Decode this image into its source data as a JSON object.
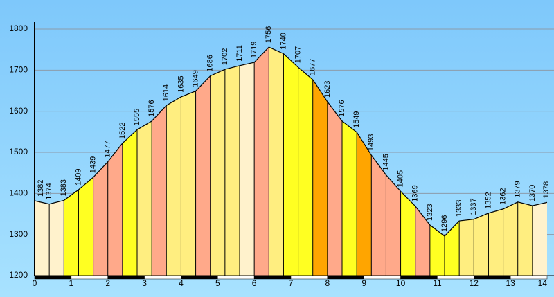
{
  "chart_data": {
    "type": "area",
    "title": "",
    "xlabel": "",
    "ylabel": "",
    "x": [
      0,
      0.4,
      0.8,
      1.2,
      1.6,
      2.0,
      2.4,
      2.8,
      3.2,
      3.6,
      4.0,
      4.4,
      4.8,
      5.2,
      5.6,
      6.0,
      6.4,
      6.8,
      7.2,
      7.6,
      8.0,
      8.4,
      8.8,
      9.2,
      9.6,
      10.0,
      10.4,
      10.8,
      11.2,
      11.6,
      12.0,
      12.4,
      12.8,
      13.2,
      13.6,
      14.0
    ],
    "values": [
      1382,
      1374,
      1383,
      1409,
      1439,
      1477,
      1522,
      1555,
      1576,
      1614,
      1635,
      1649,
      1686,
      1702,
      1711,
      1719,
      1756,
      1740,
      1707,
      1677,
      1623,
      1576,
      1549,
      1493,
      1445,
      1405,
      1369,
      1323,
      1296,
      1333,
      1337,
      1352,
      1362,
      1379,
      1370,
      1378
    ],
    "segment_colors": [
      "#FFF2CC",
      "#FFF2CC",
      "#FFFF22",
      "#FFFF22",
      "#FFA98A",
      "#FFA98A",
      "#FFFF22",
      "#FFEE80",
      "#FFA98A",
      "#FFEE80",
      "#FFEE80",
      "#FFA98A",
      "#FFEE80",
      "#FFEE80",
      "#FFF2CC",
      "#FFA98A",
      "#FFEE80",
      "#FFFF22",
      "#FFFF22",
      "#FFA500",
      "#FFA98A",
      "#FFFF22",
      "#FFA500",
      "#FFA98A",
      "#FFA98A",
      "#FFFF22",
      "#FFA98A",
      "#FFFF22",
      "#FFFF22",
      "#FFEE80",
      "#FFEE80",
      "#FFEE80",
      "#FFEE80",
      "#FFEE80",
      "#FFF2CC"
    ],
    "xlim": [
      0,
      14
    ],
    "ylim": [
      1200,
      1800
    ],
    "xticks": [
      "0",
      "1",
      "2",
      "3",
      "4",
      "5",
      "6",
      "7",
      "8",
      "9",
      "10",
      "11",
      "12",
      "13",
      "14"
    ],
    "yticks": [
      "1200",
      "1300",
      "1400",
      "1500",
      "1600",
      "1700",
      "1800"
    ],
    "grid": true,
    "background": "#8FD8FF"
  }
}
